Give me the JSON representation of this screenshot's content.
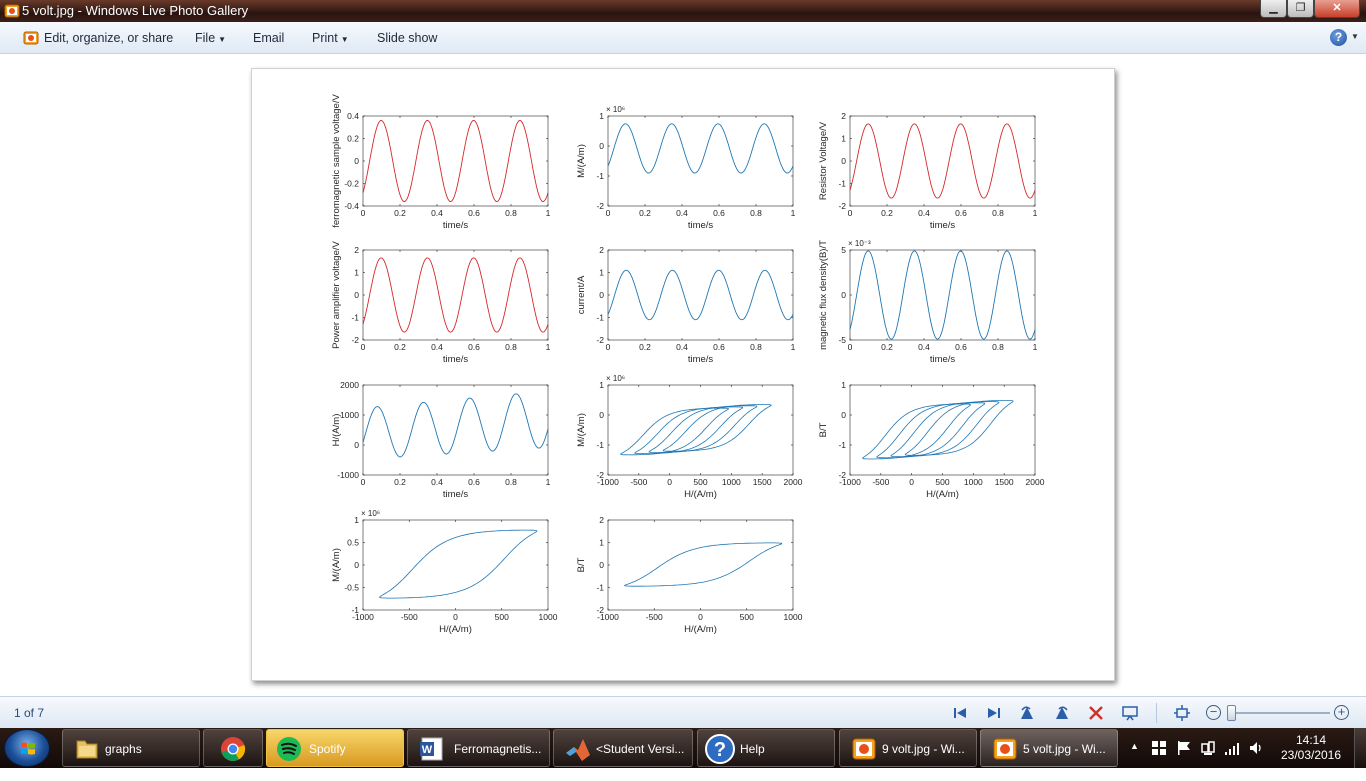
{
  "window": {
    "title": "5 volt.jpg - Windows Live Photo Gallery",
    "icon": "photo-gallery-icon",
    "controls": [
      "minimize-icon",
      "maximize-icon",
      "close-icon"
    ]
  },
  "commandbar": {
    "edit": "Edit, organize, or share",
    "file": "File",
    "email": "Email",
    "print": "Print",
    "slideshow": "Slide show",
    "help": "?"
  },
  "navbar": {
    "counter": "1 of 7",
    "icons": [
      "first-icon",
      "next-icon",
      "rotate-left-icon",
      "rotate-right-icon",
      "delete-icon",
      "slideshow-icon",
      "actual-size-icon"
    ],
    "zoom_out": "−",
    "zoom_in": "+",
    "zoom_level": 0.0
  },
  "chart_data": [
    {
      "type": "line",
      "color": "#d62728",
      "x": [
        0,
        0.2,
        0.4,
        0.6,
        0.8,
        1
      ],
      "xlabel": "time/s",
      "ylabel": "ferromagnetic sample voltage/V",
      "xlim": [
        0,
        1
      ],
      "ylim": [
        -0.4,
        0.4
      ],
      "xticks": [
        "0",
        "0.2",
        "0.4",
        "0.6",
        "0.8",
        "1"
      ],
      "yticks": [
        "-0.4",
        "-0.2",
        "0",
        "0.2",
        "0.4"
      ],
      "amplitude": 0.36,
      "frequency": 4,
      "exponent": ""
    },
    {
      "type": "line",
      "color": "#1f77b4",
      "x": [
        0,
        0.2,
        0.4,
        0.6,
        0.8,
        1
      ],
      "xlabel": "time/s",
      "ylabel": "M/(A/m)",
      "xlim": [
        0,
        1
      ],
      "ylim": [
        -2,
        1
      ],
      "xticks": [
        "0",
        "0.2",
        "0.4",
        "0.6",
        "0.8",
        "1"
      ],
      "yticks": [
        "-2",
        "-1",
        "0",
        "1"
      ],
      "amplitude": 0.82,
      "frequency": 4,
      "exponent": "× 10⁶"
    },
    {
      "type": "line",
      "color": "#d62728",
      "x": [
        0,
        0.2,
        0.4,
        0.6,
        0.8,
        1
      ],
      "xlabel": "time/s",
      "ylabel": "Resistor Voltage/V",
      "xlim": [
        0,
        1
      ],
      "ylim": [
        -2,
        2
      ],
      "xticks": [
        "0",
        "0.2",
        "0.4",
        "0.6",
        "0.8",
        "1"
      ],
      "yticks": [
        "-2",
        "-1",
        "0",
        "1",
        "2"
      ],
      "amplitude": 1.65,
      "frequency": 4,
      "exponent": ""
    },
    {
      "type": "line",
      "color": "#d62728",
      "x": [
        0,
        0.2,
        0.4,
        0.6,
        0.8,
        1
      ],
      "xlabel": "time/s",
      "ylabel": "Power amplifier voltage/V",
      "xlim": [
        0,
        1
      ],
      "ylim": [
        -2,
        2
      ],
      "xticks": [
        "0",
        "0.2",
        "0.4",
        "0.6",
        "0.8",
        "1"
      ],
      "yticks": [
        "-2",
        "-1",
        "0",
        "1",
        "2"
      ],
      "amplitude": 1.65,
      "frequency": 4,
      "exponent": ""
    },
    {
      "type": "line",
      "color": "#1f77b4",
      "x": [
        0,
        0.2,
        0.4,
        0.6,
        0.8,
        1
      ],
      "xlabel": "time/s",
      "ylabel": "current/A",
      "xlim": [
        0,
        1
      ],
      "ylim": [
        -2,
        2
      ],
      "xticks": [
        "0",
        "0.2",
        "0.4",
        "0.6",
        "0.8",
        "1"
      ],
      "yticks": [
        "-2",
        "-1",
        "0",
        "1",
        "2"
      ],
      "amplitude": 1.1,
      "frequency": 4,
      "exponent": ""
    },
    {
      "type": "line",
      "color": "#1f77b4",
      "x": [
        0,
        0.2,
        0.4,
        0.6,
        0.8,
        1
      ],
      "xlabel": "time/s",
      "ylabel": "magnetic flux density(B)/T",
      "xlim": [
        0,
        1
      ],
      "ylim": [
        -5,
        5
      ],
      "xticks": [
        "0",
        "0.2",
        "0.4",
        "0.6",
        "0.8",
        "1"
      ],
      "yticks": [
        "-5",
        "0",
        "5"
      ],
      "amplitude": 4.9,
      "frequency": 4,
      "exponent": "× 10⁻³"
    },
    {
      "type": "line",
      "color": "#1f77b4",
      "x": [
        0,
        0.2,
        0.4,
        0.6,
        0.8,
        1
      ],
      "xlabel": "time/s",
      "ylabel": "H/(A/m)",
      "xlim": [
        0,
        1
      ],
      "ylim": [
        -1000,
        2000
      ],
      "xticks": [
        "0",
        "0.2",
        "0.4",
        "0.6",
        "0.8",
        "1"
      ],
      "yticks": [
        "-1000",
        "0",
        "1000",
        "2000"
      ],
      "amplitude": 900,
      "frequency": 4,
      "exponent": ""
    },
    {
      "type": "line",
      "color": "#1f77b4",
      "xlabel": "H/(A/m)",
      "ylabel": "M/(A/m)",
      "xlim": [
        -1000,
        2000
      ],
      "ylim": [
        -2,
        1
      ],
      "xticks": [
        "-1000",
        "-500",
        "0",
        "500",
        "1000",
        "1500",
        "2000"
      ],
      "yticks": [
        "-2",
        "-1",
        "0",
        "1"
      ],
      "loops": 4,
      "loop_shift": 230,
      "loop_width": 1750,
      "loop_height": 1.7,
      "exponent": "× 10⁶"
    },
    {
      "type": "line",
      "color": "#1f77b4",
      "xlabel": "H/(A/m)",
      "ylabel": "B/T",
      "xlim": [
        -1000,
        2000
      ],
      "ylim": [
        -2,
        1
      ],
      "xticks": [
        "-1000",
        "-500",
        "0",
        "500",
        "1000",
        "1500",
        "2000"
      ],
      "yticks": [
        "-2",
        "-1",
        "0",
        "1"
      ],
      "loops": 4,
      "loop_shift": 230,
      "loop_width": 1750,
      "loop_height": 2.0,
      "exponent": ""
    },
    {
      "type": "line",
      "color": "#1f77b4",
      "xlabel": "H/(A/m)",
      "ylabel": "M/(A/m)",
      "xlim": [
        -1000,
        1000
      ],
      "ylim": [
        -1,
        1
      ],
      "xticks": [
        "-1000",
        "-500",
        "0",
        "500",
        "1000"
      ],
      "yticks": [
        "-1",
        "-0.5",
        "0",
        "0.5",
        "1"
      ],
      "loops": 1,
      "loop_shift": 0,
      "loop_width": 1700,
      "loop_height": 1.65,
      "exponent": "× 10⁶"
    },
    {
      "type": "line",
      "color": "#1f77b4",
      "xlabel": "H/(A/m)",
      "ylabel": "B/T",
      "xlim": [
        -1000,
        1000
      ],
      "ylim": [
        -2,
        2
      ],
      "xticks": [
        "-1000",
        "-500",
        "0",
        "500",
        "1000"
      ],
      "yticks": [
        "-2",
        "-1",
        "0",
        "1",
        "2"
      ],
      "loops": 1,
      "loop_shift": 0,
      "loop_width": 1700,
      "loop_height": 2.1,
      "exponent": ""
    }
  ],
  "taskbar": {
    "start_icon": "windows-start-icon",
    "items": [
      {
        "label": "graphs",
        "icon": "folder-icon",
        "active": false
      },
      {
        "label": "",
        "icon": "chrome-icon",
        "active": false
      },
      {
        "label": "Spotify",
        "icon": "spotify-icon",
        "active": true
      },
      {
        "label": "Ferromagnetis...",
        "icon": "word-icon",
        "active": false
      },
      {
        "label": "<Student Versi...",
        "icon": "matlab-icon",
        "active": false
      },
      {
        "label": "Help",
        "icon": "help-icon",
        "active": false
      },
      {
        "label": "9 volt.jpg - Wi...",
        "icon": "photo-gallery-icon",
        "active": false
      },
      {
        "label": "5 volt.jpg - Wi...",
        "icon": "photo-gallery-icon",
        "active": false
      }
    ],
    "tray_icons": [
      "show-hidden-icon",
      "action-center-icon",
      "flag-icon",
      "network-icon",
      "signal-icon",
      "volume-icon"
    ],
    "time": "14:14",
    "date": "23/03/2016"
  }
}
